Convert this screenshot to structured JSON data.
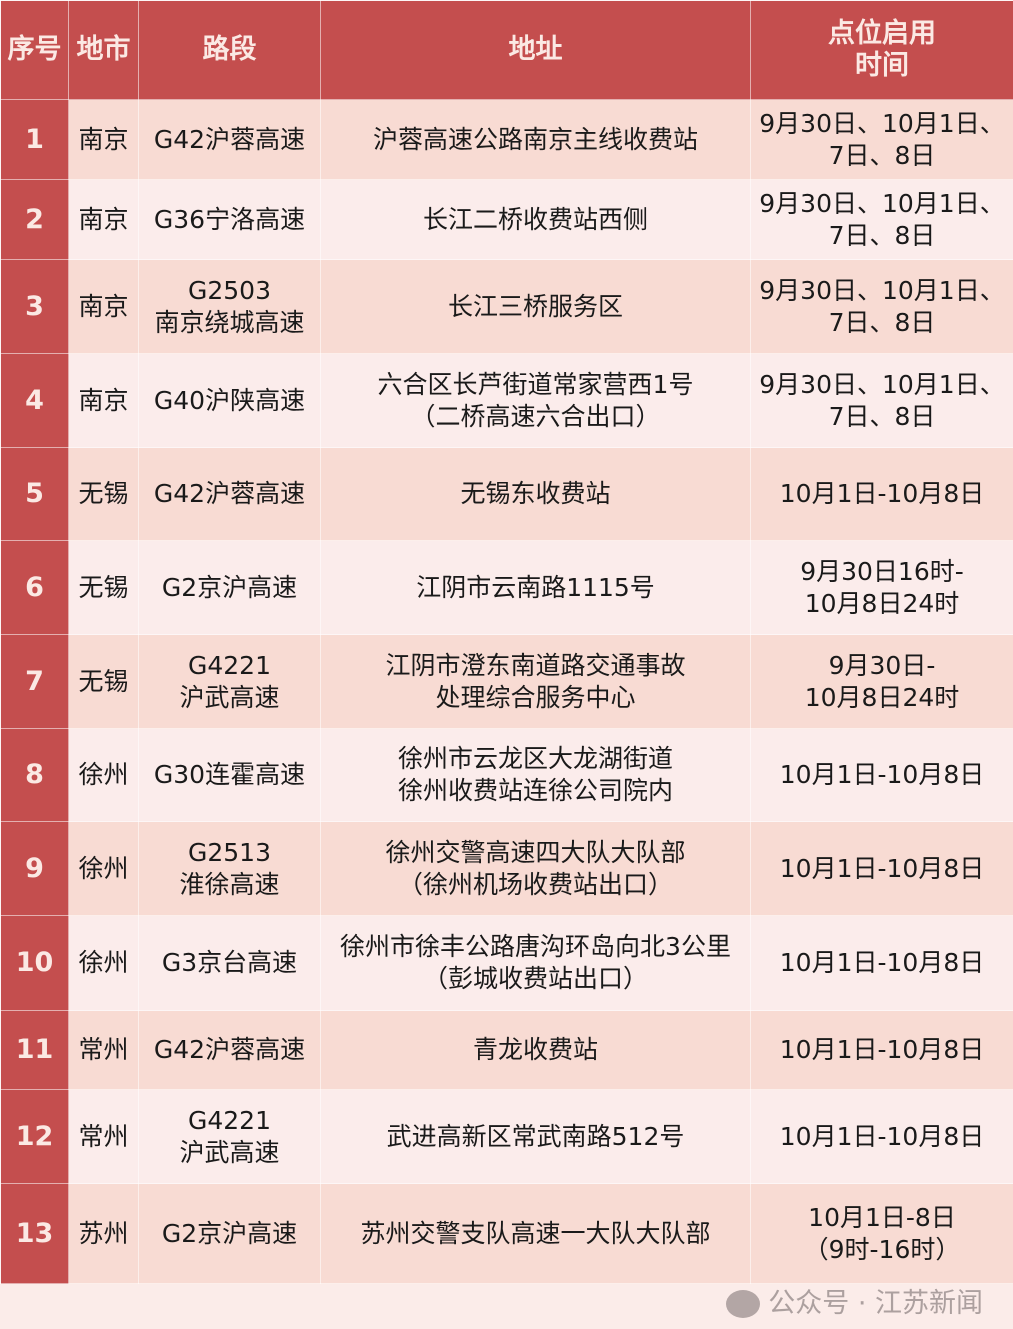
{
  "header": {
    "col1": "序号",
    "col2": "地市",
    "col3": "路段",
    "col4": "地址",
    "col5_line1": "点位启用",
    "col5_line2": "时间"
  },
  "colors": {
    "header": "#c44e4e",
    "row_odd": "#f8dbd3",
    "row_even": "#fbeceb"
  },
  "rows": [
    {
      "no": "1",
      "city": "南京",
      "road": [
        "G42沪蓉高速"
      ],
      "addr": [
        "沪蓉高速公路南京主线收费站"
      ],
      "time": [
        "9月30日、10月1日、",
        "7日、8日"
      ]
    },
    {
      "no": "2",
      "city": "南京",
      "road": [
        "G36宁洛高速"
      ],
      "addr": [
        "长江二桥收费站西侧"
      ],
      "time": [
        "9月30日、10月1日、",
        "7日、8日"
      ]
    },
    {
      "no": "3",
      "city": "南京",
      "road": [
        "G2503",
        "南京绕城高速"
      ],
      "addr": [
        "长江三桥服务区"
      ],
      "time": [
        "9月30日、10月1日、",
        "7日、8日"
      ]
    },
    {
      "no": "4",
      "city": "南京",
      "road": [
        "G40沪陕高速"
      ],
      "addr": [
        "六合区长芦街道常家营西1号",
        "（二桥高速六合出口）"
      ],
      "time": [
        "9月30日、10月1日、",
        "7日、8日"
      ]
    },
    {
      "no": "5",
      "city": "无锡",
      "road": [
        "G42沪蓉高速"
      ],
      "addr": [
        "无锡东收费站"
      ],
      "time": [
        "10月1日-10月8日"
      ]
    },
    {
      "no": "6",
      "city": "无锡",
      "road": [
        "G2京沪高速"
      ],
      "addr": [
        "江阴市云南路1115号"
      ],
      "time": [
        "9月30日16时-",
        "10月8日24时"
      ]
    },
    {
      "no": "7",
      "city": "无锡",
      "road": [
        "G4221",
        "沪武高速"
      ],
      "addr": [
        "江阴市澄东南道路交通事故",
        "处理综合服务中心"
      ],
      "time": [
        "9月30日-",
        "10月8日24时"
      ]
    },
    {
      "no": "8",
      "city": "徐州",
      "road": [
        "G30连霍高速"
      ],
      "addr": [
        "徐州市云龙区大龙湖街道",
        "徐州收费站连徐公司院内"
      ],
      "time": [
        "10月1日-10月8日"
      ]
    },
    {
      "no": "9",
      "city": "徐州",
      "road": [
        "G2513",
        "淮徐高速"
      ],
      "addr": [
        "徐州交警高速四大队大队部",
        "（徐州机场收费站出口）"
      ],
      "time": [
        "10月1日-10月8日"
      ]
    },
    {
      "no": "10",
      "city": "徐州",
      "road": [
        "G3京台高速"
      ],
      "addr": [
        "徐州市徐丰公路唐沟环岛向北3公里",
        "（彭城收费站出口）"
      ],
      "time": [
        "10月1日-10月8日"
      ]
    },
    {
      "no": "11",
      "city": "常州",
      "road": [
        "G42沪蓉高速"
      ],
      "addr": [
        "青龙收费站"
      ],
      "time": [
        "10月1日-10月8日"
      ]
    },
    {
      "no": "12",
      "city": "常州",
      "road": [
        "G4221",
        "沪武高速"
      ],
      "addr": [
        "武进高新区常武南路512号"
      ],
      "time": [
        "10月1日-10月8日"
      ]
    },
    {
      "no": "13",
      "city": "苏州",
      "road": [
        "G2京沪高速"
      ],
      "addr": [
        "苏州交警支队高速一大队大队部"
      ],
      "time": [
        "10月1日-8日",
        "（9时-16时）"
      ]
    }
  ],
  "watermark": {
    "text": "公众号 · 江苏新闻",
    "icon": "wechat-icon"
  }
}
